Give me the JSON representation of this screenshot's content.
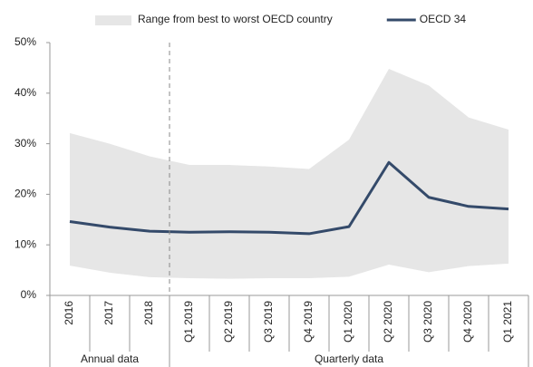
{
  "chart_data": {
    "type": "line",
    "categories": [
      "2016",
      "2017",
      "2018",
      "Q1 2019",
      "Q2 2019",
      "Q3 2019",
      "Q4 2019",
      "Q1 2020",
      "Q2 2020",
      "Q3 2020",
      "Q4 2020",
      "Q1 2021"
    ],
    "series": [
      {
        "name": "Range from best to worst OECD country",
        "type": "range",
        "color": "#e6e6e6",
        "high": [
          32.1,
          30.0,
          27.5,
          25.8,
          25.8,
          25.5,
          25.0,
          30.8,
          44.8,
          41.5,
          35.2,
          32.8
        ],
        "low": [
          5.9,
          4.5,
          3.6,
          3.4,
          3.3,
          3.4,
          3.4,
          3.7,
          6.1,
          4.6,
          5.8,
          6.3
        ]
      },
      {
        "name": "OECD 34",
        "type": "line",
        "color": "#344a6a",
        "values": [
          14.6,
          13.5,
          12.7,
          12.5,
          12.6,
          12.5,
          12.2,
          13.6,
          26.3,
          19.4,
          17.6,
          17.1
        ]
      }
    ],
    "groups": [
      {
        "label": "Annual data",
        "start": "2016"
      },
      {
        "label": "Quarterly data",
        "start": "Q1 2019"
      }
    ],
    "ylim": [
      0,
      50
    ],
    "yticks": [
      {
        "value": 0,
        "label": "0%"
      },
      {
        "value": 10,
        "label": "10%"
      },
      {
        "value": 20,
        "label": "20%"
      },
      {
        "value": 30,
        "label": "30%"
      },
      {
        "value": 40,
        "label": "40%"
      },
      {
        "value": 50,
        "label": "50%"
      }
    ],
    "legend": "top"
  }
}
